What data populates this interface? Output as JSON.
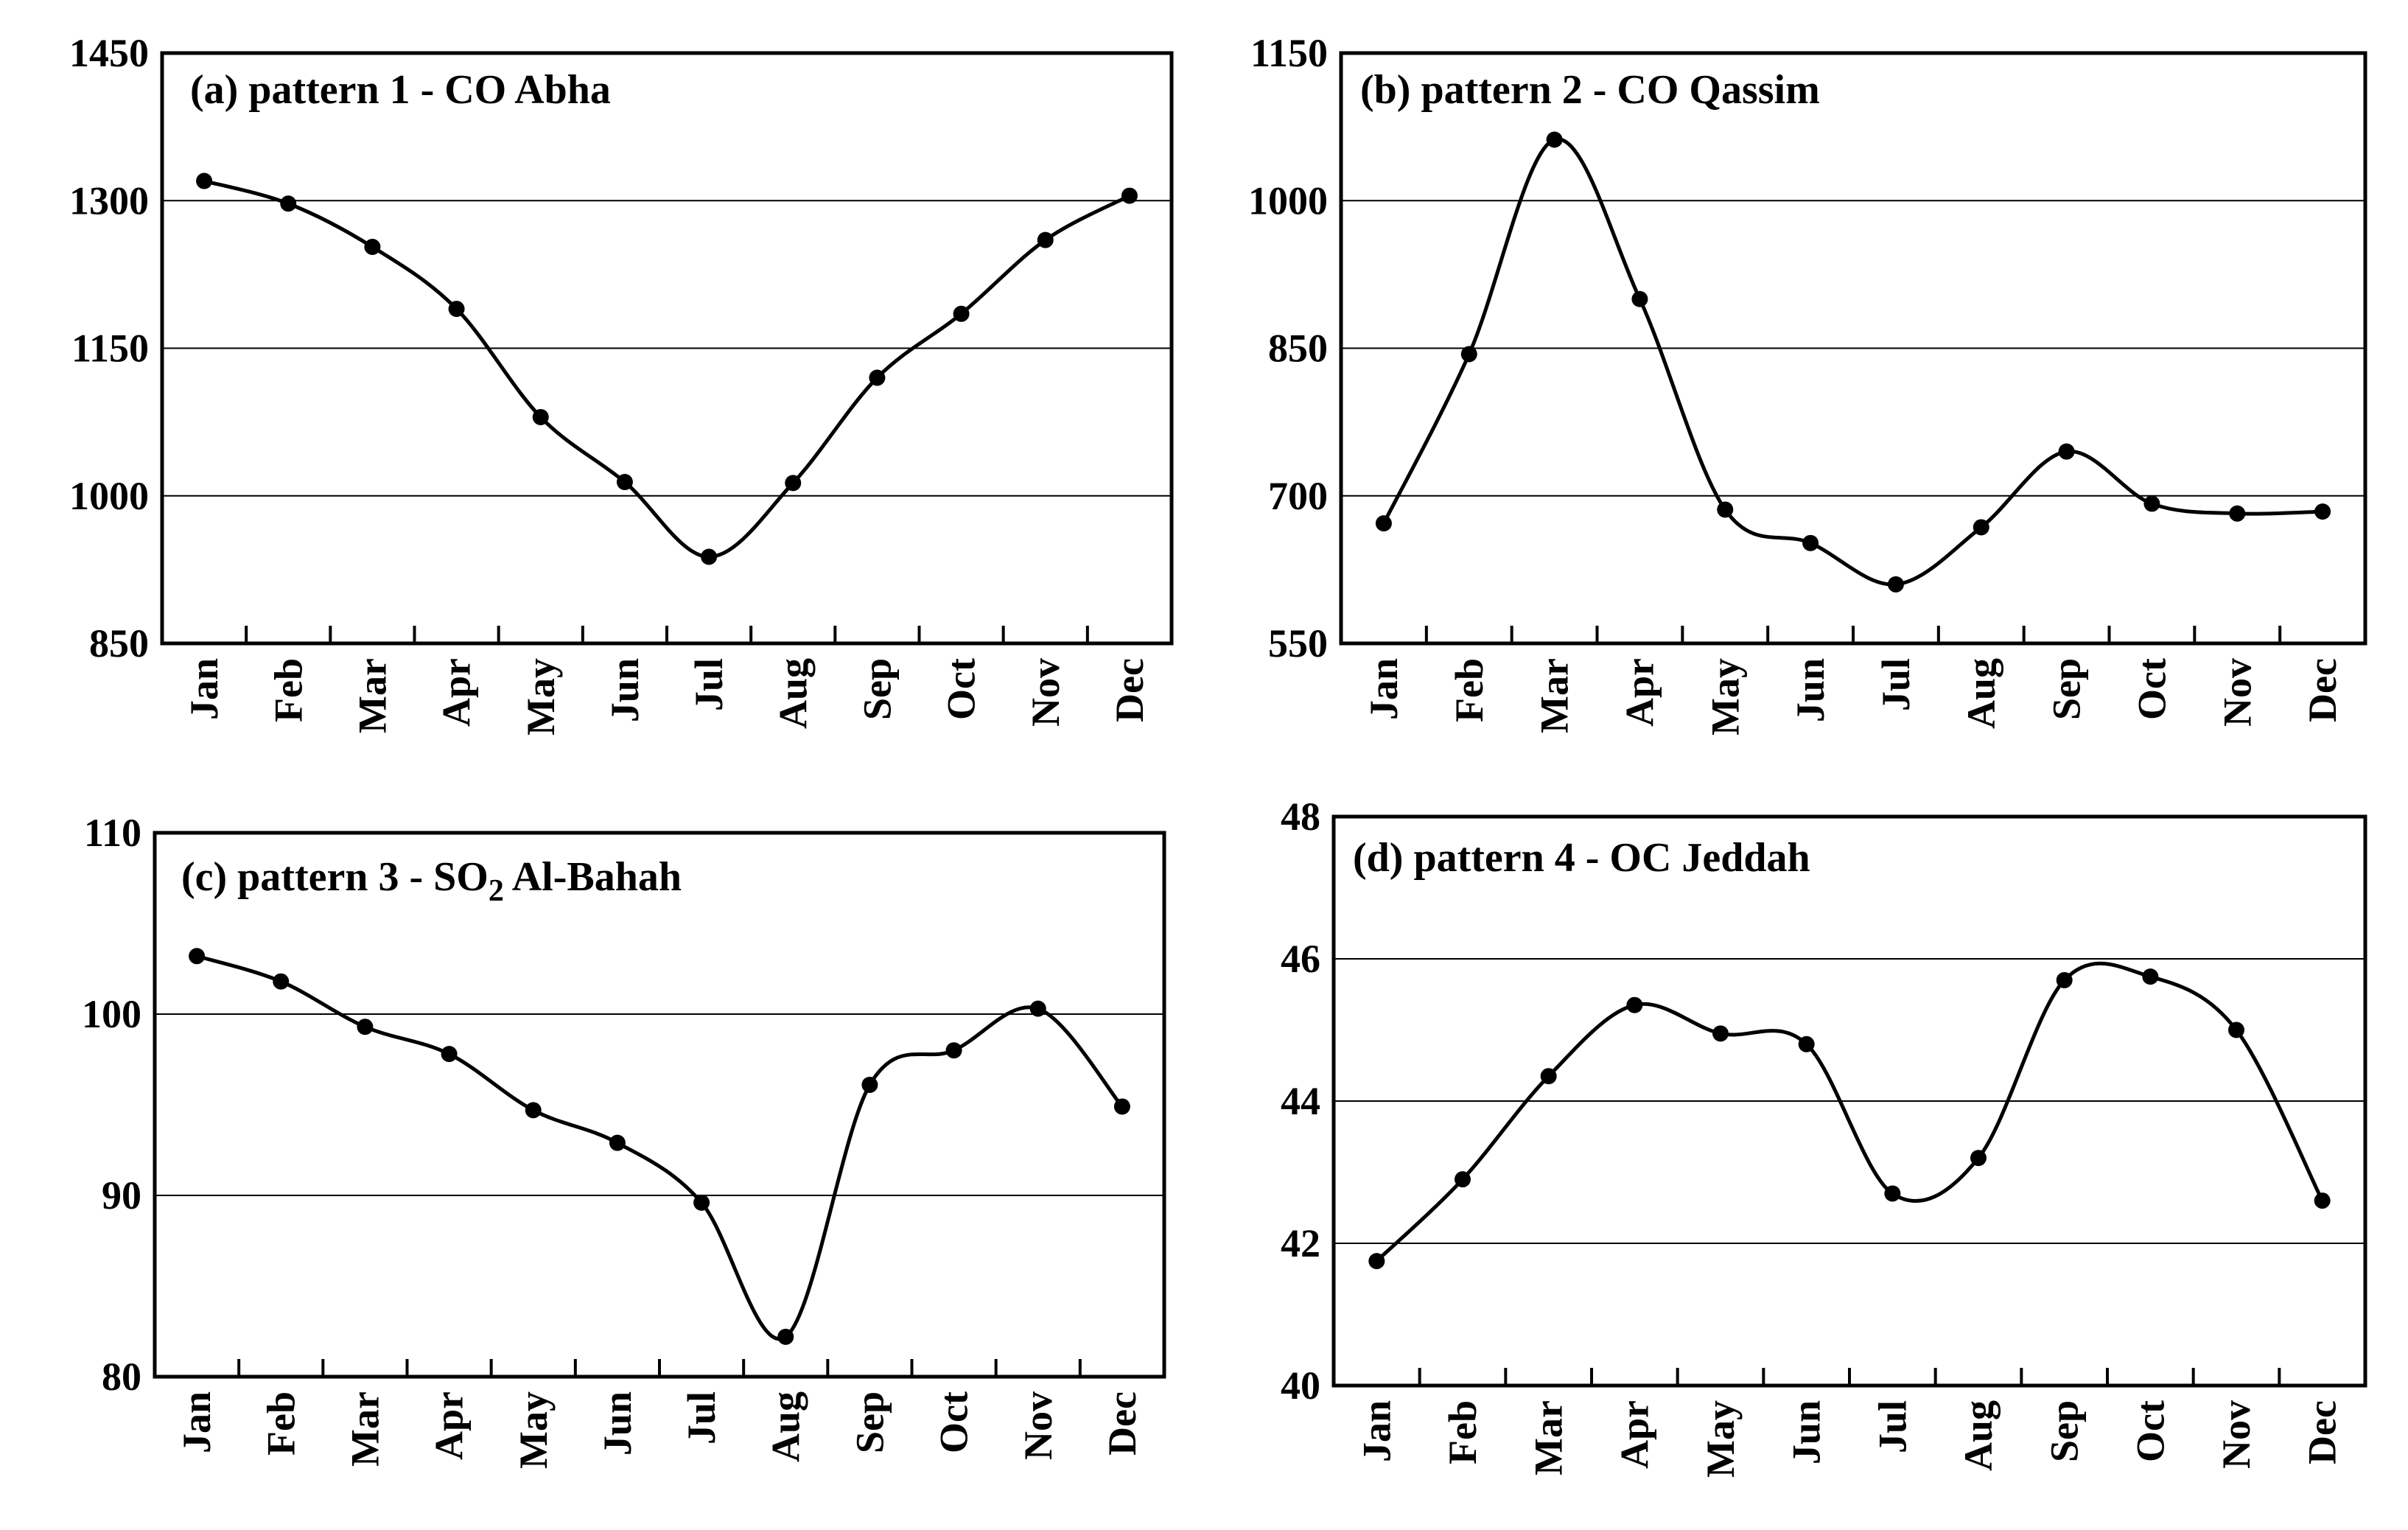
{
  "colors": {
    "line": "#000000",
    "grid": "#000000",
    "background": "#ffffff"
  },
  "chart_data": [
    {
      "id": "a",
      "type": "line",
      "title": "(a) pattern 1  - CO Abha",
      "title_subscript": "",
      "title_suffix": "",
      "categories": [
        "Jan",
        "Feb",
        "Mar",
        "Apr",
        "May",
        "Jun",
        "Jul",
        "Aug",
        "Sep",
        "Oct",
        "Nov",
        "Dec"
      ],
      "values": [
        1320,
        1297,
        1253,
        1190,
        1080,
        1014,
        938,
        1013,
        1120,
        1185,
        1260,
        1305
      ],
      "ylim": [
        850,
        1450
      ],
      "yticks": [
        850,
        1000,
        1150,
        1300,
        1450
      ],
      "ytick_labels": [
        "850",
        "1000",
        "1150",
        "1300",
        "1450"
      ],
      "grid": true,
      "xlabel": "",
      "ylabel": ""
    },
    {
      "id": "b",
      "type": "line",
      "title": "(b) pattern 2 - CO Qassim",
      "title_subscript": "",
      "title_suffix": "",
      "categories": [
        "Jan",
        "Feb",
        "Mar",
        "Apr",
        "May",
        "Jun",
        "Jul",
        "Aug",
        "Sep",
        "Oct",
        "Nov",
        "Dec"
      ],
      "values": [
        672,
        844,
        1062,
        900,
        686,
        652,
        610,
        668,
        745,
        692,
        682,
        684
      ],
      "ylim": [
        550,
        1150
      ],
      "yticks": [
        550,
        700,
        850,
        1000,
        1150
      ],
      "ytick_labels": [
        "550",
        "700",
        "850",
        "1000",
        "1150"
      ],
      "grid": true,
      "xlabel": "",
      "ylabel": ""
    },
    {
      "id": "c",
      "type": "line",
      "title": "(c) pattern 3 - SO",
      "title_subscript": "2",
      "title_suffix": " Al-Bahah",
      "categories": [
        "Jan",
        "Feb",
        "Mar",
        "Apr",
        "May",
        "Jun",
        "Jul",
        "Aug",
        "Sep",
        "Oct",
        "Nov",
        "Dec"
      ],
      "values": [
        103.2,
        101.8,
        99.3,
        97.8,
        94.7,
        92.9,
        89.6,
        82.2,
        96.1,
        98.0,
        100.3,
        94.9
      ],
      "ylim": [
        80,
        110
      ],
      "yticks": [
        80,
        90,
        100,
        110
      ],
      "ytick_labels": [
        "80",
        "90",
        "100",
        "110"
      ],
      "grid": true,
      "xlabel": "",
      "ylabel": ""
    },
    {
      "id": "d",
      "type": "line",
      "title": "(d) pattern 4 - OC Jeddah",
      "title_subscript": "",
      "title_suffix": "",
      "categories": [
        "Jan",
        "Feb",
        "Mar",
        "Apr",
        "May",
        "Jun",
        "Jul",
        "Aug",
        "Sep",
        "Oct",
        "Nov",
        "Dec"
      ],
      "values": [
        41.75,
        42.9,
        44.35,
        45.35,
        44.95,
        44.8,
        42.7,
        43.2,
        45.7,
        45.75,
        45.0,
        42.6
      ],
      "ylim": [
        40,
        48
      ],
      "yticks": [
        40,
        42,
        44,
        46,
        48
      ],
      "ytick_labels": [
        "40",
        "42",
        "44",
        "46",
        "48"
      ],
      "grid": true,
      "xlabel": "",
      "ylabel": ""
    }
  ]
}
